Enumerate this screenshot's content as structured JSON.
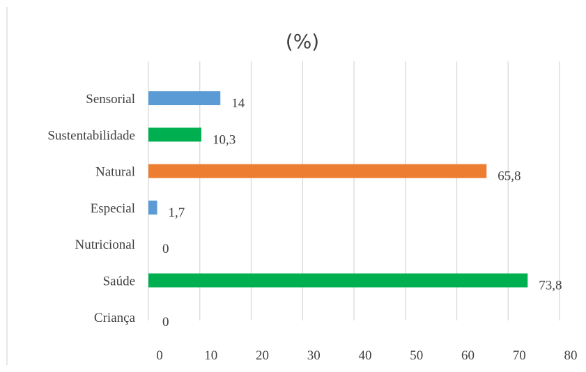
{
  "chart_data": {
    "type": "bar",
    "orientation": "horizontal",
    "title": "(%)",
    "categories": [
      "Sensorial",
      "Sustentabilidade",
      "Natural",
      "Especial",
      "Nutricional",
      "Saúde",
      "Criança"
    ],
    "values": [
      14,
      10.3,
      65.8,
      1.7,
      0,
      73.8,
      0
    ],
    "value_labels": [
      "14",
      "10,3",
      "65,8",
      "1,7",
      "0",
      "73,8",
      "0"
    ],
    "colors": [
      "#5b9bd5",
      "#00b050",
      "#ed7d31",
      "#5b9bd5",
      "#5b9bd5",
      "#00b050",
      "#00b050"
    ],
    "xlim": [
      0,
      80
    ],
    "xticks": [
      "0",
      "10",
      "20",
      "30",
      "40",
      "50",
      "60",
      "70",
      "80"
    ],
    "grid": true,
    "legend": "none"
  }
}
